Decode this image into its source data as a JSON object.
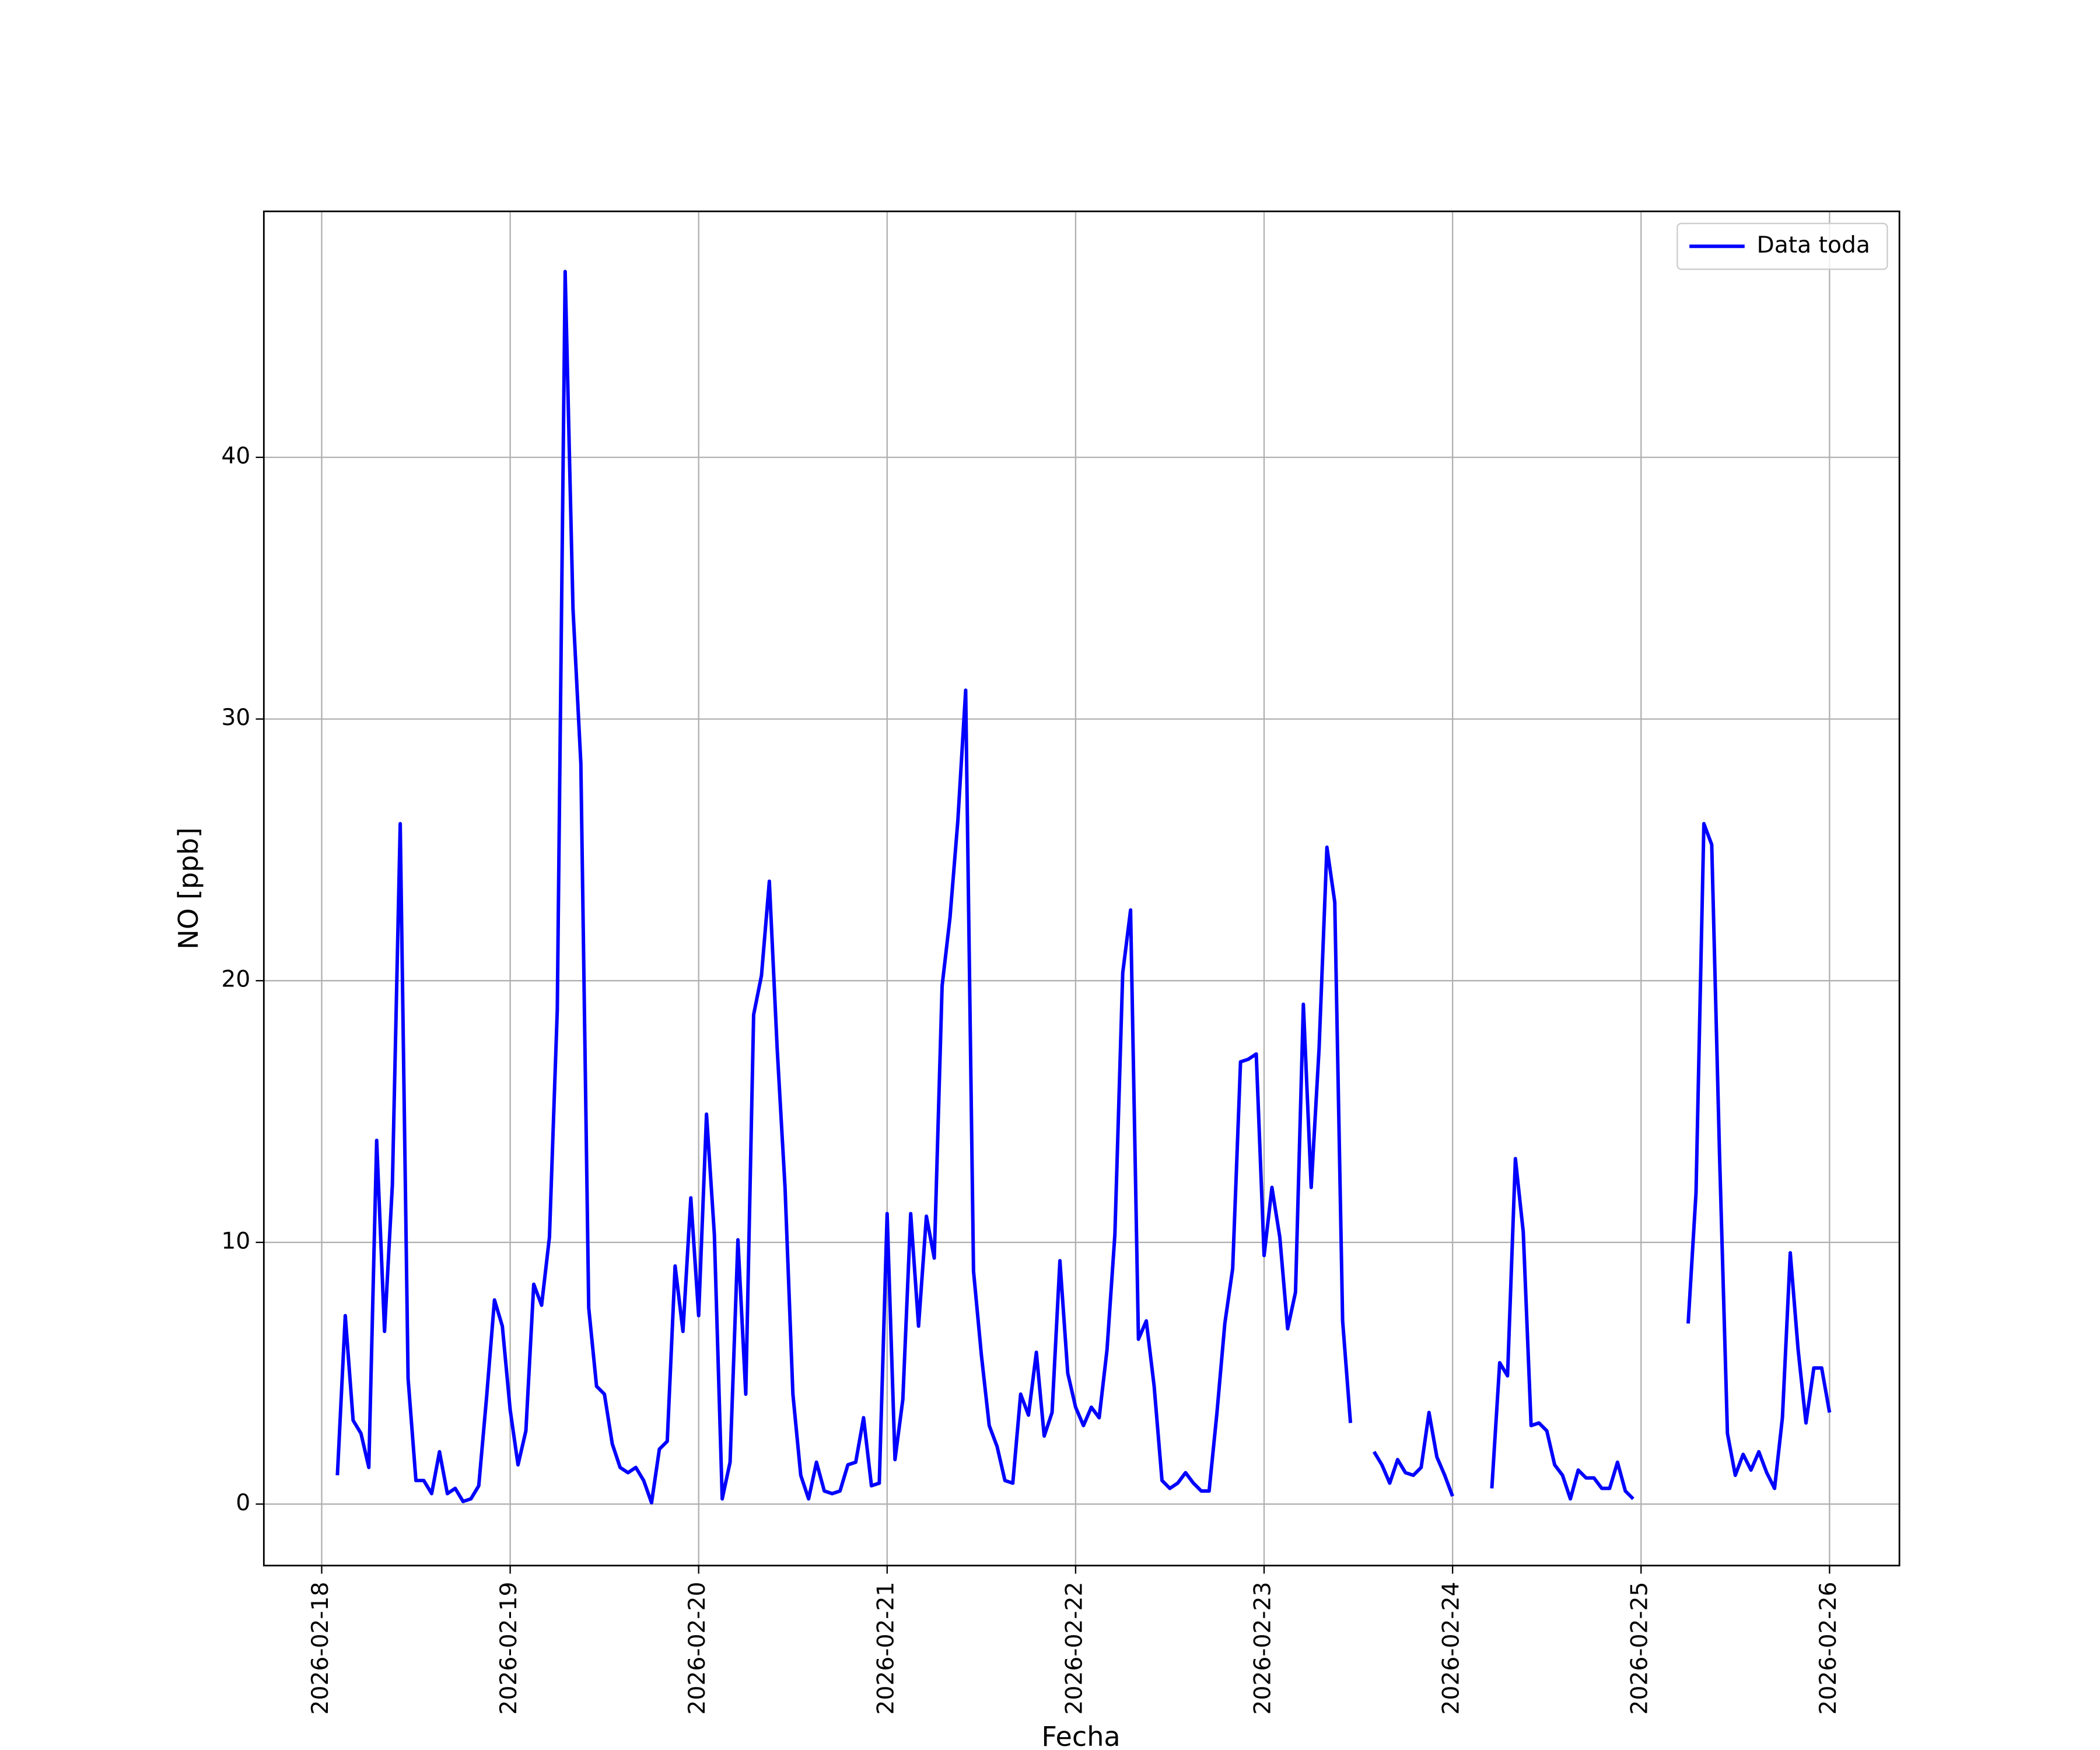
{
  "chart_data": {
    "type": "line",
    "xlabel": "Fecha",
    "ylabel": "NO [ppb]",
    "legend": "upper right",
    "grid": true,
    "xlim": [
      "2026-02-17 16:38",
      "2026-02-26 08:54"
    ],
    "xticks": [
      "2026-02-18",
      "2026-02-19",
      "2026-02-20",
      "2026-02-21",
      "2026-02-22",
      "2026-02-23",
      "2026-02-24",
      "2026-02-25",
      "2026-02-26"
    ],
    "ylim": [
      -2.35,
      49.4
    ],
    "yticks": [
      0,
      10,
      20,
      30,
      40
    ],
    "x": [
      "2026-02-18 02:00",
      "2026-02-18 03:00",
      "2026-02-18 04:00",
      "2026-02-18 05:00",
      "2026-02-18 06:00",
      "2026-02-18 07:00",
      "2026-02-18 08:00",
      "2026-02-18 09:00",
      "2026-02-18 10:00",
      "2026-02-18 11:00",
      "2026-02-18 12:00",
      "2026-02-18 13:00",
      "2026-02-18 14:00",
      "2026-02-18 15:00",
      "2026-02-18 16:00",
      "2026-02-18 17:00",
      "2026-02-18 18:00",
      "2026-02-18 19:00",
      "2026-02-18 20:00",
      "2026-02-18 21:00",
      "2026-02-18 22:00",
      "2026-02-18 23:00",
      "2026-02-19 00:00",
      "2026-02-19 01:00",
      "2026-02-19 02:00",
      "2026-02-19 03:00",
      "2026-02-19 04:00",
      "2026-02-19 05:00",
      "2026-02-19 06:00",
      "2026-02-19 07:00",
      "2026-02-19 08:00",
      "2026-02-19 09:00",
      "2026-02-19 10:00",
      "2026-02-19 11:00",
      "2026-02-19 12:00",
      "2026-02-19 13:00",
      "2026-02-19 14:00",
      "2026-02-19 15:00",
      "2026-02-19 16:00",
      "2026-02-19 17:00",
      "2026-02-19 18:00",
      "2026-02-19 19:00",
      "2026-02-19 20:00",
      "2026-02-19 21:00",
      "2026-02-19 22:00",
      "2026-02-19 23:00",
      "2026-02-20 00:00",
      "2026-02-20 01:00",
      "2026-02-20 02:00",
      "2026-02-20 03:00",
      "2026-02-20 04:00",
      "2026-02-20 05:00",
      "2026-02-20 06:00",
      "2026-02-20 07:00",
      "2026-02-20 08:00",
      "2026-02-20 09:00",
      "2026-02-20 10:00",
      "2026-02-20 11:00",
      "2026-02-20 12:00",
      "2026-02-20 13:00",
      "2026-02-20 14:00",
      "2026-02-20 15:00",
      "2026-02-20 16:00",
      "2026-02-20 17:00",
      "2026-02-20 18:00",
      "2026-02-20 19:00",
      "2026-02-20 20:00",
      "2026-02-20 21:00",
      "2026-02-20 22:00",
      "2026-02-20 23:00",
      "2026-02-21 00:00",
      "2026-02-21 01:00",
      "2026-02-21 02:00",
      "2026-02-21 03:00",
      "2026-02-21 04:00",
      "2026-02-21 05:00",
      "2026-02-21 06:00",
      "2026-02-21 07:00",
      "2026-02-21 08:00",
      "2026-02-21 09:00",
      "2026-02-21 10:00",
      "2026-02-21 11:00",
      "2026-02-21 12:00",
      "2026-02-21 13:00",
      "2026-02-21 14:00",
      "2026-02-21 15:00",
      "2026-02-21 16:00",
      "2026-02-21 17:00",
      "2026-02-21 18:00",
      "2026-02-21 19:00",
      "2026-02-21 20:00",
      "2026-02-21 21:00",
      "2026-02-21 22:00",
      "2026-02-21 23:00",
      "2026-02-22 00:00",
      "2026-02-22 01:00",
      "2026-02-22 02:00",
      "2026-02-22 03:00",
      "2026-02-22 04:00",
      "2026-02-22 05:00",
      "2026-02-22 06:00",
      "2026-02-22 07:00",
      "2026-02-22 08:00",
      "2026-02-22 09:00",
      "2026-02-22 10:00",
      "2026-02-22 11:00",
      "2026-02-22 12:00",
      "2026-02-22 13:00",
      "2026-02-22 14:00",
      "2026-02-22 15:00",
      "2026-02-22 16:00",
      "2026-02-22 17:00",
      "2026-02-22 18:00",
      "2026-02-22 19:00",
      "2026-02-22 20:00",
      "2026-02-22 21:00",
      "2026-02-22 22:00",
      "2026-02-22 23:00",
      "2026-02-23 00:00",
      "2026-02-23 01:00",
      "2026-02-23 02:00",
      "2026-02-23 03:00",
      "2026-02-23 04:00",
      "2026-02-23 05:00",
      "2026-02-23 06:00",
      "2026-02-23 07:00",
      "2026-02-23 08:00",
      "2026-02-23 09:00",
      "2026-02-23 10:00",
      "2026-02-23 11:00",
      "2026-02-23 12:00",
      "2026-02-23 13:00",
      "2026-02-23 14:00",
      "2026-02-23 15:00",
      "2026-02-23 16:00",
      "2026-02-23 17:00",
      "2026-02-23 18:00",
      "2026-02-23 19:00",
      "2026-02-23 20:00",
      "2026-02-23 21:00",
      "2026-02-23 22:00",
      "2026-02-23 23:00",
      "2026-02-24 00:00",
      "2026-02-24 01:00",
      "2026-02-24 02:00",
      "2026-02-24 03:00",
      "2026-02-24 04:00",
      "2026-02-24 05:00",
      "2026-02-24 06:00",
      "2026-02-24 07:00",
      "2026-02-24 08:00",
      "2026-02-24 09:00",
      "2026-02-24 10:00",
      "2026-02-24 11:00",
      "2026-02-24 12:00",
      "2026-02-24 13:00",
      "2026-02-24 14:00",
      "2026-02-24 15:00",
      "2026-02-24 16:00",
      "2026-02-24 17:00",
      "2026-02-24 18:00",
      "2026-02-24 19:00",
      "2026-02-24 20:00",
      "2026-02-24 21:00",
      "2026-02-24 22:00",
      "2026-02-24 23:00",
      "2026-02-25 00:00",
      "2026-02-25 01:00",
      "2026-02-25 02:00",
      "2026-02-25 03:00",
      "2026-02-25 04:00",
      "2026-02-25 05:00",
      "2026-02-25 06:00",
      "2026-02-25 07:00",
      "2026-02-25 08:00",
      "2026-02-25 09:00",
      "2026-02-25 10:00",
      "2026-02-25 11:00",
      "2026-02-25 12:00",
      "2026-02-25 13:00",
      "2026-02-25 14:00",
      "2026-02-25 15:00",
      "2026-02-25 16:00",
      "2026-02-25 17:00",
      "2026-02-25 18:00",
      "2026-02-25 19:00",
      "2026-02-25 20:00",
      "2026-02-25 21:00",
      "2026-02-25 22:00",
      "2026-02-25 23:00",
      "2026-02-26 00:00"
    ],
    "series": [
      {
        "name": "Data toda",
        "color": "#0000ff",
        "values": [
          1.1,
          7.2,
          3.2,
          2.7,
          1.4,
          13.9,
          6.6,
          12.2,
          26.0,
          4.8,
          0.9,
          0.9,
          0.4,
          2.0,
          0.4,
          0.6,
          0.1,
          0.2,
          0.7,
          4.1,
          7.8,
          6.8,
          3.6,
          1.5,
          2.8,
          8.4,
          7.6,
          10.2,
          18.9,
          47.1,
          34.2,
          28.3,
          7.5,
          4.5,
          4.2,
          2.3,
          1.4,
          1.2,
          1.4,
          0.9,
          0.05,
          2.1,
          2.4,
          9.1,
          6.6,
          11.7,
          7.2,
          14.9,
          10.3,
          0.2,
          1.6,
          10.1,
          4.2,
          18.7,
          20.2,
          23.8,
          17.4,
          12.1,
          4.2,
          1.1,
          0.2,
          1.6,
          0.5,
          0.4,
          0.5,
          1.5,
          1.6,
          3.3,
          0.7,
          0.8,
          11.1,
          1.7,
          4.0,
          11.1,
          6.8,
          11.0,
          9.4,
          19.8,
          22.4,
          26.1,
          31.1,
          8.9,
          5.7,
          3.0,
          2.2,
          0.9,
          0.8,
          4.2,
          3.4,
          5.8,
          2.6,
          3.5,
          9.3,
          5.0,
          3.7,
          3.0,
          3.7,
          3.3,
          5.9,
          10.3,
          20.3,
          22.7,
          6.3,
          7.0,
          4.5,
          0.9,
          0.6,
          0.8,
          1.2,
          0.8,
          0.5,
          0.5,
          3.5,
          6.9,
          9.0,
          16.9,
          17.0,
          17.2,
          9.5,
          12.1,
          10.2,
          6.7,
          8.1,
          19.1,
          12.1,
          17.4,
          25.1,
          23.0,
          7.0,
          3.1,
          null,
          null,
          2.0,
          1.5,
          0.8,
          1.7,
          1.2,
          1.1,
          1.4,
          3.5,
          1.8,
          1.1,
          0.3,
          null,
          null,
          null,
          null,
          0.6,
          5.4,
          4.9,
          13.2,
          10.4,
          3.0,
          3.1,
          2.8,
          1.5,
          1.1,
          0.2,
          1.3,
          1.0,
          1.0,
          0.6,
          0.6,
          1.6,
          0.5,
          0.2,
          null,
          null,
          null,
          null,
          null,
          null,
          6.9,
          11.9,
          26.0,
          25.2,
          13.3,
          2.7,
          1.1,
          1.9,
          1.3,
          2.0,
          1.2,
          0.6,
          3.3,
          9.6,
          5.9,
          3.1,
          5.2,
          5.2,
          3.5
        ]
      }
    ]
  }
}
